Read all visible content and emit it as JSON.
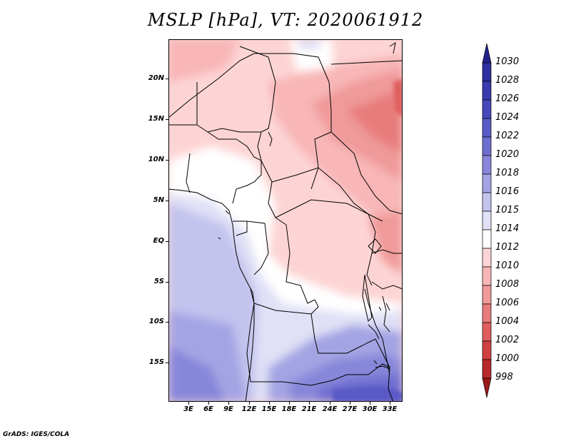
{
  "title": "MSLP [hPa], VT: 2020061912",
  "footer": "GrADS: IGES/COLA",
  "axes": {
    "y_labels": [
      "20N",
      "15N",
      "10N",
      "5N",
      "EQ",
      "5S",
      "10S",
      "15S"
    ],
    "x_labels": [
      "3E",
      "6E",
      "9E",
      "12E",
      "15E",
      "18E",
      "21E",
      "24E",
      "27E",
      "30E",
      "33E"
    ]
  },
  "colorbar": {
    "labels": [
      "1030",
      "1028",
      "1026",
      "1024",
      "1022",
      "1020",
      "1018",
      "1016",
      "1015",
      "1014",
      "1012",
      "1010",
      "1008",
      "1006",
      "1004",
      "1002",
      "1000",
      "998"
    ],
    "colors": [
      "#22228c",
      "#2e2e9e",
      "#3a3aae",
      "#4848bb",
      "#5a5ac6",
      "#6e6ed0",
      "#8787da",
      "#a4a4e4",
      "#c3c3ee",
      "#e0e0f6",
      "#ffffff",
      "#fdd4d4",
      "#f8b6b6",
      "#f09a9a",
      "#e87c7c",
      "#df5d5d",
      "#d04040",
      "#b82a2a",
      "#9a1a1a"
    ]
  },
  "colors": {
    "high": "#6e6ed0",
    "mid": "#ffffff",
    "low": "#e87c7c",
    "border": "#000000"
  }
}
